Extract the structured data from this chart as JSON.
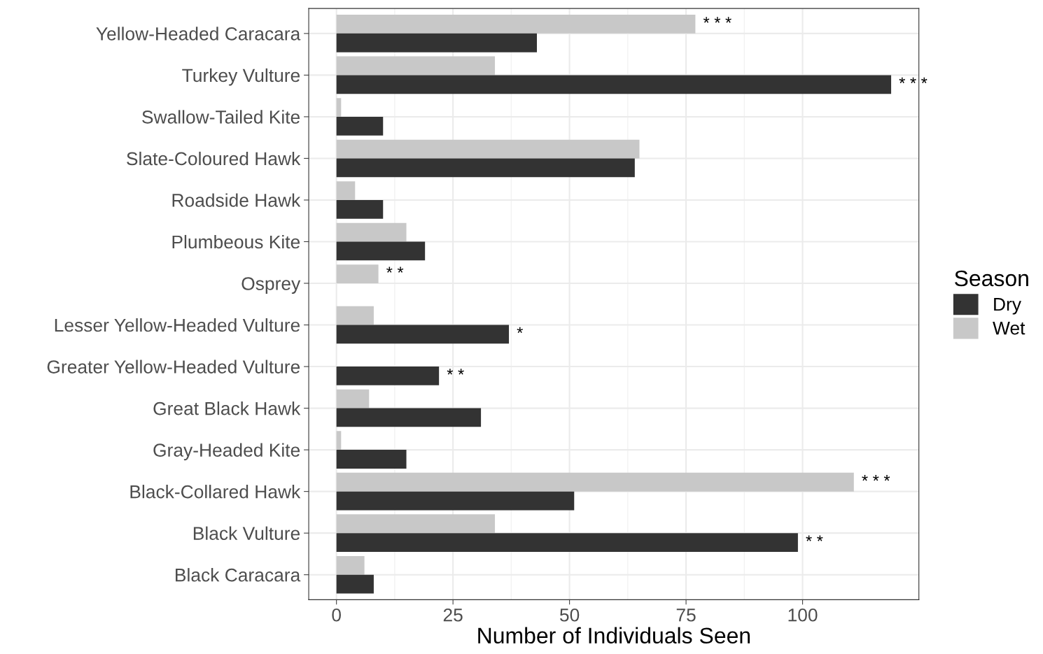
{
  "chart_data": {
    "type": "bar",
    "orientation": "horizontal",
    "xlabel": "Number of Individuals Seen",
    "legend_title": "Season",
    "legend": "right",
    "grid": true,
    "categories": [
      "Yellow-Headed Caracara",
      "Turkey Vulture",
      "Swallow-Tailed Kite",
      "Slate-Coloured Hawk",
      "Roadside Hawk",
      "Plumbeous Kite",
      "Osprey",
      "Lesser Yellow-Headed Vulture",
      "Greater Yellow-Headed Vulture",
      "Great Black Hawk",
      "Gray-Headed Kite",
      "Black-Collared Hawk",
      "Black Vulture",
      "Black Caracara"
    ],
    "series": [
      {
        "name": "Wet",
        "color": "#c8c8c8",
        "values": [
          77,
          34,
          1,
          65,
          4,
          15,
          9,
          8,
          0,
          7,
          1,
          111,
          34,
          6
        ]
      },
      {
        "name": "Dry",
        "color": "#333333",
        "values": [
          43,
          119,
          10,
          64,
          10,
          19,
          0,
          37,
          22,
          31,
          15,
          51,
          99,
          8
        ]
      }
    ],
    "xlim": [
      -5.95,
      124.95
    ],
    "xticks": [
      0,
      25,
      50,
      75,
      100
    ],
    "annotations": [
      {
        "text": "* * *",
        "x": 77,
        "y": "Yellow-Headed Caracara"
      },
      {
        "text": "* * *",
        "x": 119,
        "y": "Turkey Vulture"
      },
      {
        "text": "* *",
        "x": 9,
        "y": "Osprey"
      },
      {
        "text": "*",
        "x": 37,
        "y": "Lesser Yellow-Headed Vulture"
      },
      {
        "text": "* *",
        "x": 22,
        "y": "Greater Yellow-Headed Vulture"
      },
      {
        "text": "* * *",
        "x": 111,
        "y": "Black-Collared Hawk"
      },
      {
        "text": "* *",
        "x": 99,
        "y": "Black Vulture"
      }
    ]
  }
}
